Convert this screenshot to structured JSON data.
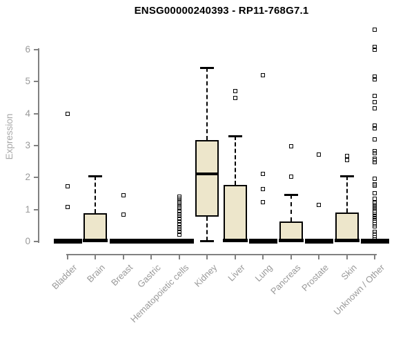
{
  "chart_data": {
    "type": "boxplot",
    "title": "ENSG00000240393 - RP11-768G7.1",
    "ylabel": "Expression",
    "xlabel": "",
    "ylim": [
      0,
      6.8
    ],
    "yticks": [
      0,
      1,
      2,
      3,
      4,
      5,
      6
    ],
    "grid": false,
    "legend": null,
    "categories": [
      "Bladder",
      "Brain",
      "Breast",
      "Gastric",
      "Hematopoietic cells",
      "Kidney",
      "Liver",
      "Lung",
      "Pancreas",
      "Prostate",
      "Skin",
      "Unknown / Other"
    ],
    "series": [
      {
        "name": "Bladder",
        "q1": 0,
        "median": 0,
        "q3": 0,
        "whisker_low": 0,
        "whisker_high": 0,
        "outliers": [
          4.0,
          1.72,
          1.08
        ]
      },
      {
        "name": "Brain",
        "q1": 0,
        "median": 0,
        "q3": 0.88,
        "whisker_low": 0,
        "whisker_high": 2.04,
        "outliers": []
      },
      {
        "name": "Breast",
        "q1": 0,
        "median": 0,
        "q3": 0,
        "whisker_low": 0,
        "whisker_high": 0,
        "outliers": [
          1.45,
          0.85
        ]
      },
      {
        "name": "Gastric",
        "q1": 0,
        "median": 0,
        "q3": 0,
        "whisker_low": 0,
        "whisker_high": 0,
        "outliers": []
      },
      {
        "name": "Hematopoietic cells",
        "q1": 0,
        "median": 0,
        "q3": 0,
        "whisker_low": 0,
        "whisker_high": 0,
        "outliers": [
          1.4,
          1.33,
          1.25,
          1.18,
          1.1,
          1.03,
          0.95,
          0.87,
          0.8,
          0.72,
          0.62,
          0.55,
          0.45,
          0.38,
          0.3,
          0.22
        ]
      },
      {
        "name": "Kidney",
        "q1": 0.78,
        "median": 2.12,
        "q3": 3.18,
        "whisker_low": 0.02,
        "whisker_high": 5.45,
        "outliers": []
      },
      {
        "name": "Liver",
        "q1": 0,
        "median": 0,
        "q3": 1.78,
        "whisker_low": 0,
        "whisker_high": 3.3,
        "outliers": [
          4.7,
          4.48
        ]
      },
      {
        "name": "Lung",
        "q1": 0,
        "median": 0,
        "q3": 0,
        "whisker_low": 0,
        "whisker_high": 0,
        "outliers": [
          5.2,
          2.12,
          1.65,
          1.22
        ]
      },
      {
        "name": "Pancreas",
        "q1": 0,
        "median": 0,
        "q3": 0.62,
        "whisker_low": 0,
        "whisker_high": 1.46,
        "outliers": [
          2.97,
          2.02
        ]
      },
      {
        "name": "Prostate",
        "q1": 0,
        "median": 0,
        "q3": 0,
        "whisker_low": 0,
        "whisker_high": 0,
        "outliers": [
          2.72,
          1.15
        ]
      },
      {
        "name": "Skin",
        "q1": 0,
        "median": 0,
        "q3": 0.9,
        "whisker_low": 0,
        "whisker_high": 2.05,
        "outliers": [
          2.68,
          2.55
        ]
      },
      {
        "name": "Unknown / Other",
        "q1": 0,
        "median": 0,
        "q3": 0,
        "whisker_low": 0,
        "whisker_high": 0,
        "outliers": [
          6.62,
          6.08,
          6.0,
          5.15,
          5.08,
          4.55,
          4.36,
          4.17,
          3.62,
          3.55,
          3.2,
          2.82,
          2.76,
          2.6,
          2.54,
          2.48,
          1.97,
          1.8,
          1.74,
          1.51,
          1.34,
          1.2,
          1.14,
          1.08,
          1.02,
          0.96,
          0.9,
          0.84,
          0.78,
          0.72,
          0.65,
          0.54,
          0.48,
          0.3,
          0.24,
          0.12,
          0.06
        ]
      }
    ],
    "colors": {
      "box_fill": "#ede6cb",
      "box_border": "#000000",
      "median": "#000000",
      "outlier": "#000000",
      "axis": "#808080",
      "tick_label": "#999999",
      "axis_label": "#a8a8a8",
      "title": "#000000",
      "background": "#ffffff"
    }
  }
}
